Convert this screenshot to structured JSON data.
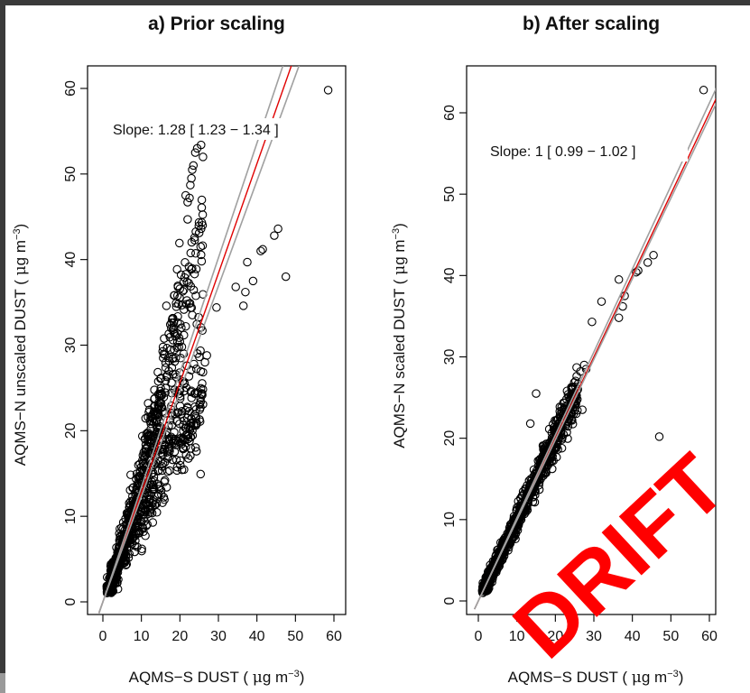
{
  "chart_data": [
    {
      "type": "scatter",
      "title": "a) Prior scaling",
      "xlabel": "AQMS−S DUST ( μg m⁻³)",
      "ylabel": "AQMS−N unscaled DUST ( μg m⁻³)",
      "xlim": [
        0,
        60
      ],
      "ylim": [
        0,
        60
      ],
      "xticks": [
        0,
        10,
        20,
        30,
        40,
        50,
        60
      ],
      "yticks": [
        0,
        10,
        20,
        30,
        40,
        50,
        60
      ],
      "annotation": "Slope: 1.28 [ 1.23 − 1.34 ]",
      "fit_lines": [
        {
          "slope": 1.28,
          "color": "#e00000"
        },
        {
          "slope": 1.23,
          "color": "#a0a0a0"
        },
        {
          "slope": 1.34,
          "color": "#a0a0a0"
        }
      ],
      "grid": false,
      "outliers": [
        [
          58.5,
          59.8
        ],
        [
          47.5,
          38.0
        ],
        [
          45.5,
          43.6
        ],
        [
          44.5,
          42.8
        ],
        [
          41.5,
          41.2
        ],
        [
          41.0,
          41.0
        ],
        [
          39.0,
          37.5
        ],
        [
          37.5,
          39.7
        ],
        [
          37.0,
          36.2
        ],
        [
          36.5,
          34.6
        ],
        [
          34.5,
          36.8
        ],
        [
          29.5,
          34.4
        ],
        [
          26.0,
          52.0
        ],
        [
          25.5,
          53.4
        ],
        [
          24.5,
          53.0
        ],
        [
          24.0,
          52.5
        ],
        [
          23.5,
          51.0
        ],
        [
          23.2,
          50.5
        ],
        [
          23.0,
          49.5
        ],
        [
          22.7,
          48.7
        ],
        [
          22.5,
          47.2
        ],
        [
          22.0,
          46.7
        ],
        [
          21.5,
          47.5
        ],
        [
          22.0,
          44.7
        ],
        [
          25.5,
          43.6
        ],
        [
          19.5,
          36.8
        ],
        [
          18.5,
          35.8
        ],
        [
          19.0,
          34.9
        ],
        [
          18.0,
          33.0
        ],
        [
          17.5,
          32.4
        ],
        [
          16.5,
          34.6
        ],
        [
          20.5,
          29.8
        ],
        [
          21.0,
          29.0
        ],
        [
          27.0,
          28.8
        ],
        [
          26.5,
          28.0
        ]
      ]
    },
    {
      "type": "scatter",
      "title": "b) After scaling",
      "xlabel": "AQMS−S DUST ( μg m⁻³)",
      "ylabel": "AQMS−N scaled DUST ( μg m⁻³)",
      "xlim": [
        0,
        60
      ],
      "ylim": [
        0,
        60
      ],
      "xticks": [
        0,
        10,
        20,
        30,
        40,
        50,
        60
      ],
      "yticks": [
        0,
        10,
        20,
        30,
        40,
        50,
        60
      ],
      "annotation": "Slope: 1 [ 0.99 − 1.02 ]",
      "fit_lines": [
        {
          "slope": 1.0,
          "color": "#e00000"
        },
        {
          "slope": 0.99,
          "color": "#a0a0a0"
        },
        {
          "slope": 1.02,
          "color": "#a0a0a0"
        }
      ],
      "grid": false,
      "outliers": [
        [
          58.5,
          62.8
        ],
        [
          47.0,
          20.2
        ],
        [
          45.5,
          42.5
        ],
        [
          44.0,
          41.6
        ],
        [
          41.5,
          40.6
        ],
        [
          41.0,
          40.4
        ],
        [
          38.0,
          37.5
        ],
        [
          37.5,
          36.2
        ],
        [
          36.5,
          34.8
        ],
        [
          36.5,
          39.5
        ],
        [
          32.0,
          36.8
        ],
        [
          29.5,
          34.3
        ],
        [
          15.0,
          25.5
        ],
        [
          28.0,
          28.5
        ],
        [
          27.5,
          29.0
        ],
        [
          26.5,
          28.2
        ],
        [
          13.5,
          21.8
        ],
        [
          27.0,
          23.5
        ]
      ]
    }
  ],
  "watermark": "DRIFT"
}
